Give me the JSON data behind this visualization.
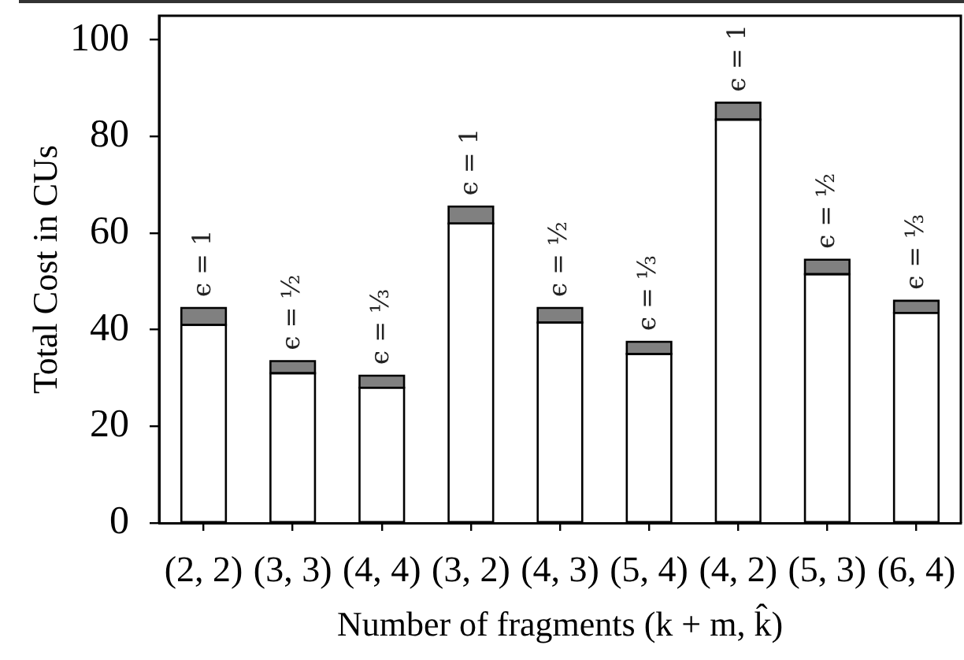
{
  "chart_data": {
    "type": "bar",
    "xlabel": "Number of fragments (k + m, k̂)",
    "ylabel": "Total Cost in CUs",
    "categories": [
      "(2, 2)",
      "(3, 3)",
      "(4, 4)",
      "(3, 2)",
      "(4, 3)",
      "(5, 4)",
      "(4, 2)",
      "(5, 3)",
      "(6, 4)"
    ],
    "series": [
      {
        "color": "#ffffff",
        "values": [
          41,
          31,
          28,
          62,
          41.5,
          35,
          83.5,
          51.5,
          43.5
        ]
      },
      {
        "color": "#808080",
        "values": [
          3.5,
          2.5,
          2.5,
          3.5,
          3,
          2.5,
          3.5,
          3,
          2.5
        ]
      }
    ],
    "stacked": true,
    "ylim": [
      0,
      105
    ],
    "yticks": [
      0,
      20,
      40,
      60,
      80,
      100
    ],
    "annotations": [
      {
        "text": "ϵ = 1",
        "x": "(2, 2)",
        "y": 44.5
      },
      {
        "text": "ϵ = ½",
        "x": "(3, 3)",
        "y": 33.5
      },
      {
        "text": "ϵ = ⅓",
        "x": "(4, 4)",
        "y": 30.5
      },
      {
        "text": "ϵ = 1",
        "x": "(3, 2)",
        "y": 65.5
      },
      {
        "text": "ϵ = ½",
        "x": "(4, 3)",
        "y": 44.5
      },
      {
        "text": "ϵ = ⅓",
        "x": "(5, 4)",
        "y": 37.5
      },
      {
        "text": "ϵ = 1",
        "x": "(4, 2)",
        "y": 87
      },
      {
        "text": "ϵ = ½",
        "x": "(5, 3)",
        "y": 54.5
      },
      {
        "text": "ϵ = ⅓",
        "x": "(6, 4)",
        "y": 46
      }
    ]
  }
}
